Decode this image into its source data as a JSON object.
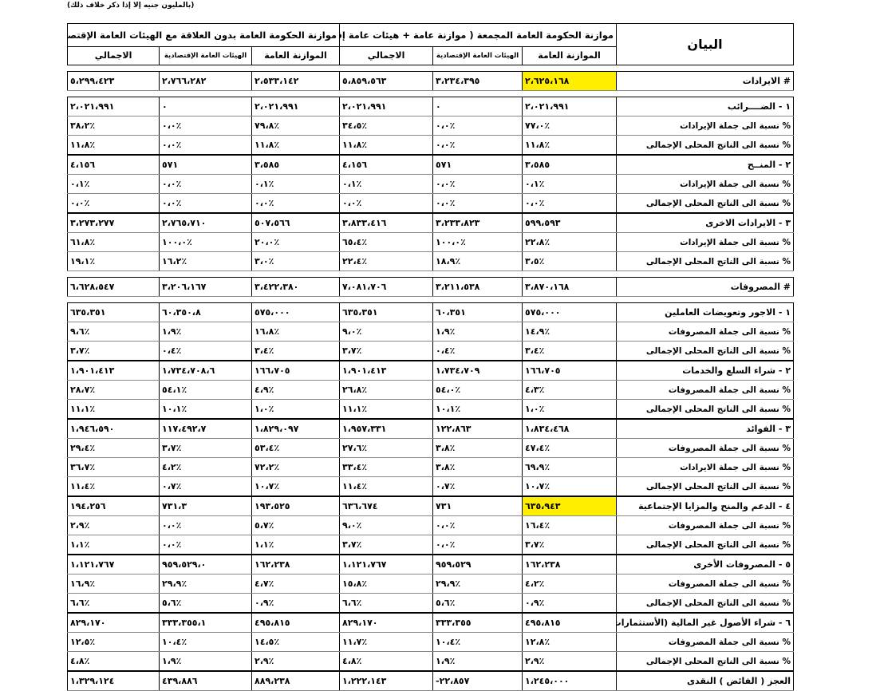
{
  "note": "(بالمليون جنيه إلا إذا ذكر خلاف ذلك)",
  "header": {
    "label_col": "البيان",
    "groups": [
      "موازنة الحكومة العامة المجمعة ( موازنة عامة + هيئات عامة إقتصادية )",
      "موازنة الحكومة العامة بدون العلاقة مع الهيئات العامة الإقتصادية"
    ],
    "subcols": [
      "الموازنة العامة",
      "الهيئات العامة الإقتصادية",
      "الاجمالي"
    ]
  },
  "rows": [
    {
      "label": "# الايرادات",
      "values": [
        "٢،٦٢٥،١٦٨",
        "٣،٢٣٤،٣٩٥",
        "٥،٨٥٩،٥٦٣",
        "٢،٥٣٣،١٤٢",
        "٢،٧٦٦،٢٨٢",
        "٥،٢٩٩،٤٢٣"
      ]
    },
    {
      "label": "١ - الضــــرائب",
      "values": [
        "٢،٠٢١،٩٩١",
        "٠",
        "٢،٠٢١،٩٩١",
        "٢،٠٢١،٩٩١",
        "٠",
        "٢،٠٢١،٩٩١"
      ]
    },
    {
      "label": "% نسبة الى جملة الإيرادات",
      "values": [
        "٧٧،٠٪",
        "٠،٠٪",
        "٣٤،٥٪",
        "٧٩،٨٪",
        "٠،٠٪",
        "٣٨،٢٪"
      ]
    },
    {
      "label": "% نسبة الى الناتج المحلى الإجمالى",
      "values": [
        "١١،٨٪",
        "٠،٠٪",
        "١١،٨٪",
        "١١،٨٪",
        "٠،٠٪",
        "١١،٨٪"
      ]
    },
    {
      "label": "٢ - المنــح",
      "values": [
        "٣،٥٨٥",
        "٥٧١",
        "٤،١٥٦",
        "٣،٥٨٥",
        "٥٧١",
        "٤،١٥٦"
      ]
    },
    {
      "label": "% نسبة الى جملة الإيرادات",
      "values": [
        "٠،١٪",
        "٠،٠٪",
        "٠،١٪",
        "٠،١٪",
        "٠،٠٪",
        "٠،١٪"
      ]
    },
    {
      "label": "% نسبة الى الناتج المحلى الإجمالى",
      "values": [
        "٠،٠٪",
        "٠،٠٪",
        "٠،٠٪",
        "٠،٠٪",
        "٠،٠٪",
        "٠،٠٪"
      ]
    },
    {
      "label": "٣ - الايرادات الاخرى",
      "values": [
        "٥٩٩،٥٩٣",
        "٣،٢٣٣،٨٢٣",
        "٣،٨٣٣،٤١٦",
        "٥٠٧،٥٦٦",
        "٢،٧٦٥،٧١٠",
        "٣،٢٧٣،٢٧٧"
      ]
    },
    {
      "label": "% نسبة الى جملة الإيرادات",
      "values": [
        "٢٢،٨٪",
        "١٠٠،٠٪",
        "٦٥،٤٪",
        "٢٠،٠٪",
        "١٠٠،٠٪",
        "٦١،٨٪"
      ]
    },
    {
      "label": "% نسبة الى الناتج المحلى الإجمالى",
      "values": [
        "٣،٥٪",
        "١٨،٩٪",
        "٢٢،٤٪",
        "٣،٠٪",
        "١٦،٢٪",
        "١٩،١٪"
      ]
    },
    {
      "label": "# المصروفات",
      "values": [
        "٣،٨٧٠،١٦٨",
        "٣،٢١١،٥٣٨",
        "٧،٠٨١،٧٠٦",
        "٣،٤٢٢،٣٨٠",
        "٣،٢٠٦،١٦٧",
        "٦،٦٢٨،٥٤٧"
      ]
    },
    {
      "label": "١ - الاجور وتعويضات العاملين",
      "values": [
        "٥٧٥،٠٠٠",
        "٦٠،٣٥١",
        "٦٣٥،٣٥١",
        "٥٧٥،٠٠٠",
        "٦٠،٣٥٠،٨",
        "٦٣٥،٣٥١"
      ]
    },
    {
      "label": "% نسبة الى جملة المصروفات",
      "values": [
        "١٤،٩٪",
        "١،٩٪",
        "٩،٠٪",
        "١٦،٨٪",
        "١،٩٪",
        "٩،٦٪"
      ]
    },
    {
      "label": "% نسبة الى الناتج المحلى الإجمالى",
      "values": [
        "٣،٤٪",
        "٠،٤٪",
        "٣،٧٪",
        "٣،٤٪",
        "٠،٤٪",
        "٣،٧٪"
      ]
    },
    {
      "label": "٢ - شراء السلع والخدمات",
      "values": [
        "١٦٦،٧٠٥",
        "١،٧٣٤،٧٠٩",
        "١،٩٠١،٤١٣",
        "١٦٦،٧٠٥",
        "١،٧٣٤،٧٠٨،٦",
        "١،٩٠١،٤١٣"
      ]
    },
    {
      "label": "% نسبة الى جملة المصروفات",
      "values": [
        "٤،٣٪",
        "٥٤،٠٪",
        "٢٦،٨٪",
        "٤،٩٪",
        "٥٤،١٪",
        "٢٨،٧٪"
      ]
    },
    {
      "label": "% نسبة الى الناتج المحلى الإجمالى",
      "values": [
        "١،٠٪",
        "١٠،١٪",
        "١١،١٪",
        "١،٠٪",
        "١٠،١٪",
        "١١،١٪"
      ]
    },
    {
      "label": "٣ - الفوائد",
      "values": [
        "١،٨٣٤،٤٦٨",
        "١٢٢،٨٦٣",
        "١،٩٥٧،٣٣١",
        "١،٨٢٩،٠٩٧",
        "١١٧،٤٩٢،٧",
        "١،٩٤٦،٥٩٠"
      ]
    },
    {
      "label": "% نسبة الى جملة المصروفات",
      "values": [
        "٤٧،٤٪",
        "٣،٨٪",
        "٢٧،٦٪",
        "٥٣،٤٪",
        "٣،٧٪",
        "٢٩،٤٪"
      ]
    },
    {
      "label": "% نسبة الى جملة الايرادات",
      "values": [
        "٦٩،٩٪",
        "٣،٨٪",
        "٣٣،٤٪",
        "٧٢،٢٪",
        "٤،٢٪",
        "٣٦،٧٪"
      ]
    },
    {
      "label": "% نسبة الى الناتج المحلى الإجمالى",
      "values": [
        "١٠،٧٪",
        "٠،٧٪",
        "١١،٤٪",
        "١٠،٧٪",
        "٠،٧٪",
        "١١،٤٪"
      ]
    },
    {
      "label": "٤ - الدعم والمنح والمزايا الإجتماعية",
      "values": [
        "٦٣٥،٩٤٣",
        "٧٣١",
        "٦٣٦،٦٧٤",
        "١٩٣،٥٢٥",
        "٧٣١،٣",
        "١٩٤،٢٥٦"
      ]
    },
    {
      "label": "% نسبة الى جملة المصروفات",
      "values": [
        "١٦،٤٪",
        "٠،٠٪",
        "٩،٠٪",
        "٥،٧٪",
        "٠،٠٪",
        "٢،٩٪"
      ]
    },
    {
      "label": "% نسبة الى الناتج المحلى الإجمالى",
      "values": [
        "٣،٧٪",
        "٠،٠٪",
        "٣،٧٪",
        "١،١٪",
        "٠،٠٪",
        "١،١٪"
      ]
    },
    {
      "label": "٥ - المصروفات الأخرى",
      "values": [
        "١٦٢،٢٣٨",
        "٩٥٩،٥٢٩",
        "١،١٢١،٧٦٧",
        "١٦٢،٢٣٨",
        "٩٥٩،٥٢٩،٠",
        "١،١٢١،٧٦٧"
      ]
    },
    {
      "label": "% نسبة الى جملة المصروفات",
      "values": [
        "٤،٢٪",
        "٢٩،٩٪",
        "١٥،٨٪",
        "٤،٧٪",
        "٢٩،٩٪",
        "١٦،٩٪"
      ]
    },
    {
      "label": "% نسبة الى الناتج المحلى الإجمالى",
      "values": [
        "٠،٩٪",
        "٥،٦٪",
        "٦،٦٪",
        "٠،٩٪",
        "٥،٦٪",
        "٦،٦٪"
      ]
    },
    {
      "label": "٦ - شراء الأصول غير المالية (الأستثمارات)",
      "values": [
        "٤٩٥،٨١٥",
        "٣٣٣،٣٥٥",
        "٨٢٩،١٧٠",
        "٤٩٥،٨١٥",
        "٣٣٣،٣٥٥،١",
        "٨٢٩،١٧٠"
      ]
    },
    {
      "label": "% نسبة الى جملة المصروفات",
      "values": [
        "١٢،٨٪",
        "١٠،٤٪",
        "١١،٧٪",
        "١٤،٥٪",
        "١٠،٤٪",
        "١٢،٥٪"
      ]
    },
    {
      "label": "% نسبة الى الناتج المحلى الإجمالى",
      "values": [
        "٢،٩٪",
        "١،٩٪",
        "٤،٨٪",
        "٢،٩٪",
        "١،٩٪",
        "٤،٨٪"
      ]
    },
    {
      "label": "العجز ( الفائض ) النقدى",
      "values": [
        "١،٢٤٥،٠٠٠",
        "-٢٢،٨٥٧",
        "١،٢٢٢،١٤٣",
        "٨٨٩،٢٣٨",
        "٤٣٩،٨٨٦",
        "١،٣٢٩،١٢٤"
      ]
    }
  ],
  "highlight_color": "#ffee00"
}
